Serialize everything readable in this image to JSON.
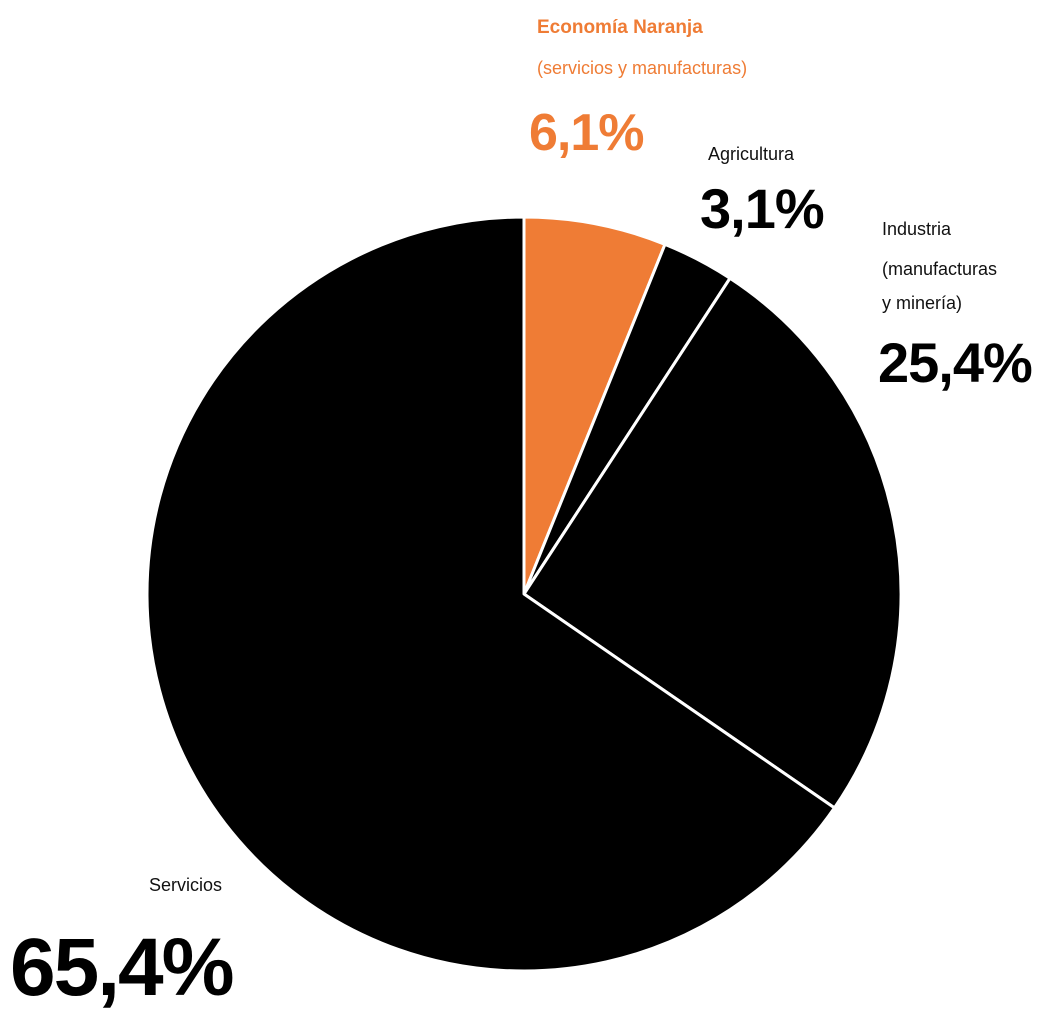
{
  "chart_data": {
    "type": "pie",
    "start_angle_deg": 0,
    "direction": "clockwise",
    "slices": [
      {
        "name": "Economía Naranja",
        "subtitle": "(servicios y manufacturas)",
        "value": 6.1,
        "display": "6,1%",
        "color": "#EF7C35"
      },
      {
        "name": "Agricultura",
        "value": 3.1,
        "display": "3,1%",
        "color": "#000000"
      },
      {
        "name": "Industria",
        "name_lines": [
          "Industria",
          "(manufacturas",
          "y minería)"
        ],
        "value": 25.4,
        "display": "25,4%",
        "color": "#000000"
      },
      {
        "name": "Servicios",
        "value": 65.4,
        "display": "65,4%",
        "color": "#000000"
      }
    ],
    "separator_color": "#ffffff",
    "legend": "none"
  }
}
